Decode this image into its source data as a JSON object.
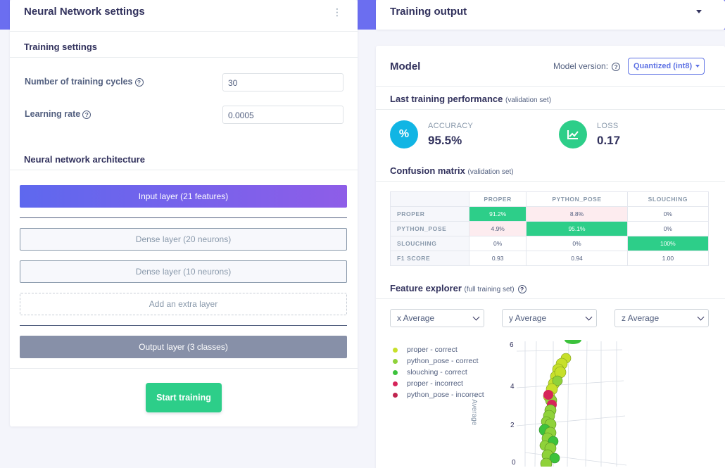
{
  "nn_settings": {
    "title": "Neural Network settings",
    "kebab": "⋮",
    "training_settings_title": "Training settings",
    "cycles_label": "Number of training cycles",
    "cycles_value": "30",
    "lr_label": "Learning rate",
    "lr_value": "0.0005",
    "help_glyph": "?",
    "architecture_title": "Neural network architecture",
    "layers": {
      "input": "Input layer (21 features)",
      "dense1": "Dense layer (20 neurons)",
      "dense2": "Dense layer (10 neurons)",
      "extra": "Add an extra layer",
      "output": "Output layer (3 classes)"
    },
    "start_button": "Start training"
  },
  "training_output": {
    "title": "Training output"
  },
  "model": {
    "title": "Model",
    "version_label": "Model version:",
    "version_selected": "Quantized (int8)",
    "last_perf_title": "Last training performance",
    "last_perf_note": "(validation set)",
    "accuracy_label": "ACCURACY",
    "accuracy_value": "95.5%",
    "accuracy_icon": "%",
    "loss_label": "LOSS",
    "loss_value": "0.17",
    "confusion_title": "Confusion matrix",
    "confusion_note": "(validation set)",
    "confusion": {
      "columns": [
        "PROPER",
        "PYTHON_POSE",
        "SLOUCHING"
      ],
      "rows": [
        {
          "label": "PROPER",
          "cells": [
            "91.2%",
            "8.8%",
            "0%"
          ]
        },
        {
          "label": "PYTHON_POSE",
          "cells": [
            "4.9%",
            "95.1%",
            "0%"
          ]
        },
        {
          "label": "SLOUCHING",
          "cells": [
            "0%",
            "0%",
            "100%"
          ]
        },
        {
          "label": "F1 SCORE",
          "cells": [
            "0.93",
            "0.94",
            "1.00"
          ]
        }
      ]
    },
    "feature_title": "Feature explorer",
    "feature_note": "(full training set)",
    "x_select": "x Average",
    "y_select": "y Average",
    "z_select": "z Average",
    "legend": [
      {
        "label": "proper - correct",
        "color": "#c7e02a"
      },
      {
        "label": "python_pose - correct",
        "color": "#8fd23a"
      },
      {
        "label": "slouching - correct",
        "color": "#3cc23c"
      },
      {
        "label": "proper - incorrect",
        "color": "#d6245a"
      },
      {
        "label": "python_pose - incorrect",
        "color": "#c0244f"
      }
    ],
    "z_axis_title": "z Average",
    "z_ticks": [
      "6",
      "4",
      "2",
      "0"
    ]
  },
  "colors": {
    "accent": "#5e72e4",
    "success": "#2dce89",
    "cm_high": "#2dce89",
    "cm_low_error": "#fdecef"
  }
}
